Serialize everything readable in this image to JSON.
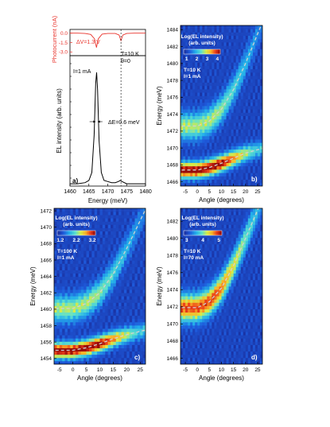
{
  "colors": {
    "photocurrent": "#e8312a",
    "axis": "#000000",
    "map_bg": "#1a2f9e",
    "guide": "#d2d2d2"
  },
  "chart_data": [
    {
      "panel": "a)",
      "type": "line",
      "subplots": [
        {
          "role": "photocurrent",
          "ylabel": "Photocurrent (nA)",
          "yticks": [
            "0.0",
            "-1.5",
            "-3.0"
          ],
          "ylim": [
            -3.6,
            0.6
          ],
          "x": [
            1460,
            1462,
            1464,
            1465.5,
            1466.5,
            1467.0,
            1467.5,
            1468.5,
            1470,
            1472,
            1473.0,
            1473.5,
            1474.0,
            1475,
            1477,
            1480
          ],
          "y": [
            0.0,
            0.0,
            -0.05,
            -0.2,
            -0.9,
            -2.3,
            -0.9,
            -0.15,
            -0.05,
            -0.05,
            -0.3,
            -1.2,
            -0.3,
            -0.05,
            0.0,
            0.0
          ],
          "annotation": "ΔV=1.3 V"
        },
        {
          "role": "EL",
          "ylabel": "EL intensity (arb. units)",
          "xlabel": "Energy (meV)",
          "xticks": [
            "1460",
            "1465",
            "1470",
            "1475",
            "1480"
          ],
          "xlim": [
            1460,
            1480
          ],
          "x": [
            1460,
            1462,
            1464,
            1465,
            1465.8,
            1466.4,
            1466.8,
            1467.05,
            1467.3,
            1467.7,
            1468.3,
            1469,
            1470,
            1471,
            1472,
            1472.8,
            1473.3,
            1473.8,
            1475,
            1477,
            1480
          ],
          "y": [
            0.02,
            0.02,
            0.03,
            0.05,
            0.12,
            0.45,
            0.9,
            1.0,
            0.85,
            0.4,
            0.12,
            0.05,
            0.04,
            0.03,
            0.03,
            0.04,
            0.05,
            0.04,
            0.02,
            0.02,
            0.02
          ],
          "annotations": [
            "I=1 mA",
            "T=10 K",
            "θ=0",
            "ΔE=0.6 meV"
          ]
        }
      ]
    },
    {
      "panel": "b)",
      "type": "heatmap",
      "xlabel": "Angle (degrees)",
      "ylabel": "Energy (meV)",
      "xticks": [
        "-5",
        "0",
        "5",
        "10",
        "15",
        "20",
        "25"
      ],
      "yticks": [
        "1466",
        "1468",
        "1470",
        "1472",
        "1474",
        "1476",
        "1478",
        "1480",
        "1482",
        "1484"
      ],
      "xlim": [
        -7,
        27
      ],
      "ylim": [
        1465.5,
        1484.5
      ],
      "colorbar": {
        "title": "Log(EL intensity)",
        "subtitle": "(arb. units)",
        "ticks": [
          "1",
          "2",
          "3",
          "4"
        ]
      },
      "annotations": [
        "T=10 K",
        "I=1 mA"
      ],
      "upper_branch": {
        "x": [
          -5,
          0,
          5,
          10,
          15,
          20,
          25
        ],
        "y": [
          1472.6,
          1472.6,
          1473.2,
          1474.6,
          1476.9,
          1480.0,
          1483.5
        ]
      },
      "lower_branch": {
        "x": [
          -5,
          0,
          5,
          10,
          15,
          20,
          25
        ],
        "y": [
          1467.4,
          1467.4,
          1467.7,
          1468.2,
          1468.8,
          1469.4,
          1469.8
        ]
      }
    },
    {
      "panel": "c)",
      "type": "heatmap",
      "xlabel": "Angle (degrees)",
      "ylabel": "Energy (meV)",
      "xticks": [
        "-5",
        "0",
        "5",
        "10",
        "15",
        "20",
        "25"
      ],
      "yticks": [
        "1454",
        "1456",
        "1458",
        "1460",
        "1462",
        "1464",
        "1466",
        "1468",
        "1470",
        "1472"
      ],
      "xlim": [
        -7,
        27
      ],
      "ylim": [
        1453.3,
        1472.3
      ],
      "colorbar": {
        "title": "Log(EL intensity)",
        "subtitle": "(arb. units)",
        "ticks": [
          "1.2",
          "2.2",
          "3.2"
        ]
      },
      "annotations": [
        "T=100 K",
        "I=1 mA"
      ],
      "upper_branch": {
        "x": [
          -5,
          0,
          5,
          10,
          15,
          20,
          25
        ],
        "y": [
          1460.1,
          1460.1,
          1460.7,
          1462.0,
          1464.3,
          1467.4,
          1470.8
        ]
      },
      "lower_branch": {
        "x": [
          -5,
          0,
          5,
          10,
          15,
          20,
          25
        ],
        "y": [
          1455.0,
          1455.0,
          1455.3,
          1455.8,
          1456.4,
          1456.9,
          1457.3
        ]
      }
    },
    {
      "panel": "d)",
      "type": "heatmap",
      "xlabel": "Angle (degrees)",
      "ylabel": "Energy (meV)",
      "xticks": [
        "-5",
        "0",
        "5",
        "10",
        "15",
        "20",
        "25"
      ],
      "yticks": [
        "1466",
        "1468",
        "1470",
        "1472",
        "1474",
        "1476",
        "1478",
        "1480",
        "1482"
      ],
      "xlim": [
        -7,
        27
      ],
      "ylim": [
        1465.3,
        1483.5
      ],
      "colorbar": {
        "title": "Log(EL intensity)",
        "subtitle": "(arb. units)",
        "ticks": [
          "3",
          "4",
          "5"
        ]
      },
      "annotations": [
        "T=10 K",
        "I=70 mA"
      ],
      "upper_branch": {
        "x": [
          -5,
          0,
          5,
          10,
          15,
          20,
          25
        ],
        "y": [
          1471.9,
          1471.9,
          1472.6,
          1474.2,
          1476.8,
          1480.0,
          1483.3
        ]
      },
      "lower_branch": null
    }
  ]
}
